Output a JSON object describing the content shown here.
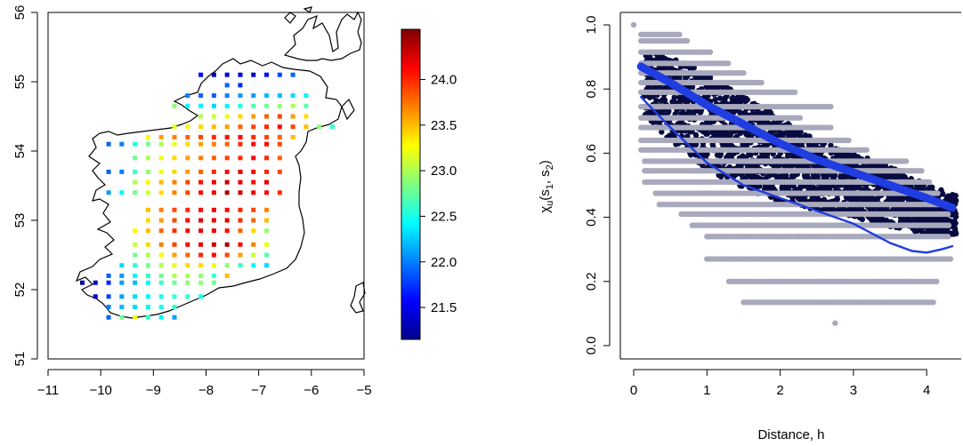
{
  "chart_data": [
    {
      "type": "heatmap",
      "title": "",
      "xlabel": "",
      "ylabel": "",
      "xlim": [
        -11,
        -5
      ],
      "ylim": [
        51,
        56
      ],
      "xticks": [
        -11,
        -10,
        -9,
        -8,
        -7,
        -6,
        -5
      ],
      "yticks": [
        51,
        52,
        53,
        54,
        55,
        56
      ],
      "xtick_labels": [
        "−11",
        "−10",
        "−9",
        "−8",
        "−7",
        "−6",
        "−5"
      ],
      "ytick_labels": [
        "51",
        "52",
        "53",
        "54",
        "55",
        "56"
      ],
      "grid": false,
      "colorbar": {
        "min": 21.15,
        "max": 24.55,
        "ticks": [
          21.5,
          22.0,
          22.5,
          23.0,
          23.5,
          24.0
        ],
        "tick_labels": [
          "21.5",
          "22.0",
          "22.5",
          "23.0",
          "23.5",
          "24.0"
        ],
        "colors": [
          "#00008B",
          "#0000FF",
          "#0080FF",
          "#00FFFF",
          "#80FF80",
          "#FFFF00",
          "#FF8000",
          "#FF0000",
          "#800000"
        ]
      },
      "grid_spacing": {
        "dlon": 0.25,
        "dlat": 0.15
      },
      "rows": [
        {
          "lat": 55.1,
          "lon_start": -8.1,
          "values": [
            21.6,
            21.2,
            21.4,
            21.5,
            21.4,
            21.6,
            21.8,
            21.9
          ]
        },
        {
          "lat": 54.95,
          "lon_start": -7.6,
          "values": [
            21.9,
            21.7
          ]
        },
        {
          "lat": 54.8,
          "lon_start": -8.35,
          "values": [
            22.0,
            21.9,
            21.9,
            22.0,
            22.1,
            22.1,
            22.2,
            22.2,
            22.3,
            22.4
          ]
        },
        {
          "lat": 54.65,
          "lon_start": -8.6,
          "values": [
            22.9,
            22.4,
            22.4,
            22.3,
            22.4,
            22.5,
            22.7,
            22.8,
            22.9,
            23.0,
            22.7
          ]
        },
        {
          "lat": 54.5,
          "lon_start": -8.1,
          "values": [
            23.0,
            23.1,
            23.2,
            23.4,
            23.6,
            23.8,
            23.9,
            23.6,
            23.4
          ]
        },
        {
          "lat": 54.35,
          "lon_start": -8.6,
          "values": [
            23.2,
            23.3,
            23.4,
            23.5,
            23.6,
            23.8,
            23.9,
            24.0,
            24.1,
            23.9,
            23.5,
            22.9,
            22.6
          ]
        },
        {
          "lat": 54.2,
          "lon_start": -9.1,
          "values": [
            23.2,
            23.6,
            23.7,
            23.8,
            23.9,
            24.0,
            24.1,
            24.1,
            24.0,
            23.9,
            23.8,
            23.5
          ]
        },
        {
          "lat": 54.1,
          "lon_start": -9.85,
          "values": [
            21.9,
            22.0,
            22.5,
            22.8,
            23.0,
            23.2,
            23.4,
            23.6,
            23.7,
            23.8,
            24.0,
            24.1,
            24.1,
            23.9
          ]
        },
        {
          "lat": 53.9,
          "lon_start": -9.35,
          "values": [
            22.8,
            23.0,
            23.2,
            23.4,
            23.6,
            23.7,
            23.8,
            23.9,
            24.0,
            24.1,
            24.0,
            23.8
          ]
        },
        {
          "lat": 53.7,
          "lon_start": -9.85,
          "values": [
            21.9,
            22.0,
            22.6,
            22.9,
            23.2,
            23.4,
            23.6,
            23.8,
            24.0,
            24.1,
            24.2,
            24.1,
            24.0,
            23.9
          ]
        },
        {
          "lat": 53.55,
          "lon_start": -9.35,
          "values": [
            23.0,
            23.3,
            23.5,
            23.7,
            23.9,
            24.1,
            24.2,
            24.3,
            24.2,
            24.1,
            24.2
          ]
        },
        {
          "lat": 53.4,
          "lon_start": -9.85,
          "values": [
            22.1,
            22.4,
            22.8,
            23.1,
            23.4,
            23.7,
            23.9,
            24.1,
            24.2,
            24.4,
            24.3,
            24.2,
            24.1,
            24.0
          ]
        },
        {
          "lat": 53.15,
          "lon_start": -9.1,
          "values": [
            23.5,
            23.7,
            23.9,
            24.0,
            24.1,
            24.2,
            24.1,
            24.0,
            23.9,
            23.7
          ]
        },
        {
          "lat": 53.0,
          "lon_start": -9.1,
          "values": [
            23.4,
            23.6,
            23.9,
            24.1,
            24.2,
            24.2,
            24.2,
            24.0,
            23.8,
            23.5
          ]
        },
        {
          "lat": 52.85,
          "lon_start": -9.35,
          "values": [
            23.3,
            23.5,
            23.8,
            24.0,
            24.1,
            24.2,
            24.2,
            24.1,
            23.8,
            23.4,
            22.9
          ]
        },
        {
          "lat": 52.65,
          "lon_start": -9.35,
          "values": [
            23.1,
            23.4,
            23.7,
            23.9,
            24.1,
            24.2,
            24.3,
            24.4,
            24.1,
            23.7,
            23.2
          ]
        },
        {
          "lat": 52.5,
          "lon_start": -9.35,
          "values": [
            22.8,
            23.0,
            23.3,
            23.6,
            23.8,
            24.0,
            24.1,
            23.9,
            23.6,
            23.1,
            22.7
          ]
        },
        {
          "lat": 52.35,
          "lon_start": -9.6,
          "values": [
            22.3,
            22.6,
            22.8,
            23.0,
            23.2,
            23.4,
            23.4,
            23.2,
            22.9,
            22.6,
            22.4,
            22.3
          ]
        },
        {
          "lat": 52.2,
          "lon_start": -9.85,
          "values": [
            21.9,
            22.1,
            22.4,
            22.6,
            22.8,
            23.0,
            23.0,
            22.9,
            22.6,
            23.5
          ]
        },
        {
          "lat": 52.1,
          "lon_start": -10.35,
          "values": [
            21.2,
            21.4,
            21.7,
            22.1,
            22.2,
            22.4,
            22.6,
            22.8,
            22.9,
            22.9,
            22.8
          ]
        },
        {
          "lat": 51.9,
          "lon_start": -10.1,
          "values": [
            21.4,
            21.8,
            22.1,
            22.3,
            22.4,
            22.5,
            22.6,
            22.6,
            22.5
          ]
        },
        {
          "lat": 51.75,
          "lon_start": -9.85,
          "values": [
            22.0,
            22.2,
            22.3,
            22.4,
            22.5,
            22.6
          ]
        },
        {
          "lat": 51.6,
          "lon_start": -9.85,
          "values": [
            21.9,
            22.8,
            23.2,
            22.6,
            22.4,
            22.1
          ]
        }
      ]
    },
    {
      "type": "scatter",
      "title": "",
      "xlabel": "Distance, h",
      "ylabel": "χu(s1, s2)",
      "xlim": [
        0,
        4.4
      ],
      "ylim": [
        0,
        1.05
      ],
      "xticks": [
        0,
        1,
        2,
        3,
        4
      ],
      "yticks": [
        0.0,
        0.2,
        0.4,
        0.6,
        0.8,
        1.0
      ],
      "xtick_labels": [
        "0",
        "1",
        "2",
        "3",
        "4"
      ],
      "ytick_labels": [
        "0.0",
        "0.2",
        "0.4",
        "0.6",
        "0.8",
        "1.0"
      ],
      "grid": false,
      "colors": {
        "empirical": "#a9a9bd",
        "model": "#070b3f",
        "smooth": "#1f3de0"
      },
      "empirical_bands": [
        {
          "y": 1.0,
          "x_range": [
            0.0,
            0.02
          ]
        },
        {
          "y": 0.97,
          "x_range": [
            0.1,
            0.65
          ]
        },
        {
          "y": 0.95,
          "x_range": [
            0.1,
            0.75
          ]
        },
        {
          "y": 0.915,
          "x_range": [
            0.1,
            1.05
          ]
        },
        {
          "y": 0.88,
          "x_range": [
            0.1,
            1.3
          ]
        },
        {
          "y": 0.85,
          "x_range": [
            0.1,
            1.5
          ]
        },
        {
          "y": 0.82,
          "x_range": [
            0.1,
            1.75
          ]
        },
        {
          "y": 0.79,
          "x_range": [
            0.1,
            2.2
          ]
        },
        {
          "y": 0.745,
          "x_range": [
            0.1,
            2.7
          ]
        },
        {
          "y": 0.71,
          "x_range": [
            0.1,
            2.3
          ]
        },
        {
          "y": 0.68,
          "x_range": [
            0.1,
            2.7
          ]
        },
        {
          "y": 0.64,
          "x_range": [
            0.1,
            2.95
          ]
        },
        {
          "y": 0.61,
          "x_range": [
            0.1,
            3.2
          ]
        },
        {
          "y": 0.575,
          "x_range": [
            0.15,
            3.75
          ]
        },
        {
          "y": 0.545,
          "x_range": [
            0.15,
            3.95
          ]
        },
        {
          "y": 0.51,
          "x_range": [
            0.15,
            4.05
          ]
        },
        {
          "y": 0.475,
          "x_range": [
            0.3,
            4.15
          ]
        },
        {
          "y": 0.44,
          "x_range": [
            0.35,
            4.3
          ]
        },
        {
          "y": 0.41,
          "x_range": [
            0.65,
            4.3
          ]
        },
        {
          "y": 0.375,
          "x_range": [
            0.8,
            4.3
          ]
        },
        {
          "y": 0.34,
          "x_range": [
            1.0,
            4.3
          ]
        },
        {
          "y": 0.27,
          "x_range": [
            1.0,
            4.35
          ]
        },
        {
          "y": 0.2,
          "x_range": [
            1.3,
            4.15
          ]
        },
        {
          "y": 0.135,
          "x_range": [
            1.5,
            4.1
          ]
        },
        {
          "y": 0.07,
          "x_range": [
            2.75,
            2.77
          ]
        }
      ],
      "model_cloud": {
        "x": [
          0.15,
          0.5,
          1.0,
          1.5,
          2.0,
          2.5,
          3.0,
          3.5,
          4.0,
          4.4
        ],
        "upper": [
          0.92,
          0.9,
          0.85,
          0.78,
          0.71,
          0.64,
          0.6,
          0.56,
          0.5,
          0.47
        ],
        "lower": [
          0.72,
          0.64,
          0.55,
          0.49,
          0.45,
          0.42,
          0.4,
          0.37,
          0.35,
          0.34
        ]
      },
      "series": [
        {
          "name": "",
          "style": "thick",
          "x": [
            0.1,
            0.5,
            1.0,
            1.5,
            2.0,
            2.5,
            3.0,
            3.5,
            4.0,
            4.35
          ],
          "y": [
            0.87,
            0.82,
            0.75,
            0.69,
            0.63,
            0.58,
            0.54,
            0.5,
            0.46,
            0.43
          ]
        },
        {
          "name": "",
          "style": "thin",
          "x": [
            0.1,
            0.5,
            1.0,
            1.5,
            2.0,
            2.5,
            3.0,
            3.5,
            3.8,
            4.0,
            4.2,
            4.35
          ],
          "y": [
            0.775,
            0.68,
            0.57,
            0.5,
            0.46,
            0.42,
            0.38,
            0.32,
            0.295,
            0.29,
            0.3,
            0.31
          ]
        }
      ]
    }
  ]
}
